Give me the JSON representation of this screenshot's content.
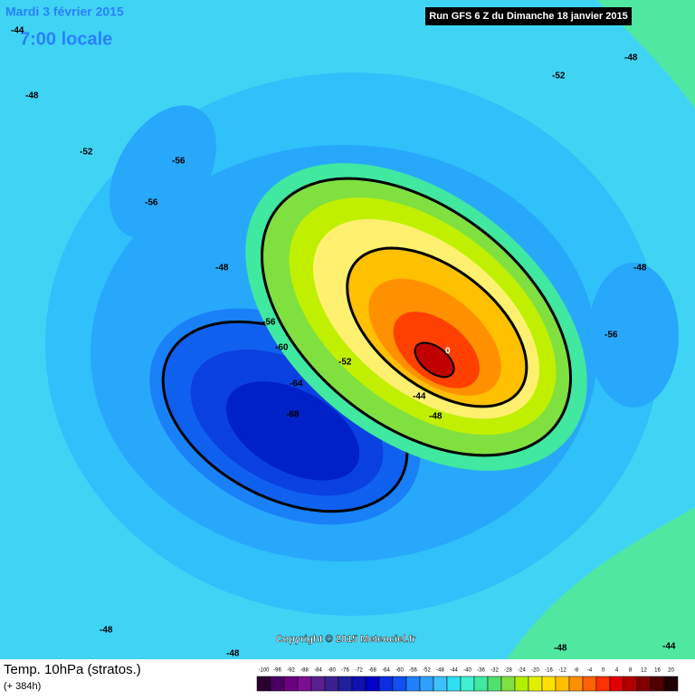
{
  "header": {
    "date": "Mardi 3 février 2015",
    "time": "7:00 locale",
    "run": "Run GFS 6 Z du Dimanche 18 janvier 2015"
  },
  "map": {
    "contour_labels": [
      "-44",
      "-48",
      "-48",
      "-52",
      "-52",
      "-56",
      "-56",
      "-56",
      "-48",
      "-56",
      "-60",
      "-52",
      "-64",
      "-68",
      "-44",
      "-48",
      "0",
      "-48",
      "-48",
      "-48",
      "-44",
      "-48"
    ],
    "copyright": "Copyright © 2015 Meteociel.fr"
  },
  "footer": {
    "title": "Temp. 10hPa (stratos.)",
    "lead": "(+ 384h)"
  },
  "legend": {
    "ticks": [
      -100,
      -96,
      -92,
      -88,
      -84,
      -80,
      -76,
      -72,
      -68,
      -64,
      -60,
      -56,
      -52,
      -48,
      -44,
      -40,
      -36,
      -32,
      -28,
      -24,
      -20,
      -16,
      -12,
      -8,
      -4,
      0,
      4,
      8,
      12,
      16,
      20
    ],
    "colors": [
      "#2a0030",
      "#4a0060",
      "#6a0080",
      "#7a1090",
      "#5a2090",
      "#3a2090",
      "#20209a",
      "#1010b0",
      "#0000c8",
      "#0a2ee0",
      "#1050f0",
      "#2080ff",
      "#30a0ff",
      "#40c0ff",
      "#30e0f0",
      "#40f0d0",
      "#40e8a0",
      "#50e070",
      "#80e040",
      "#b0f000",
      "#e0f000",
      "#ffe000",
      "#ffc000",
      "#ff9000",
      "#ff6000",
      "#ff3000",
      "#e00000",
      "#b00000",
      "#800000",
      "#500000",
      "#200000"
    ]
  }
}
